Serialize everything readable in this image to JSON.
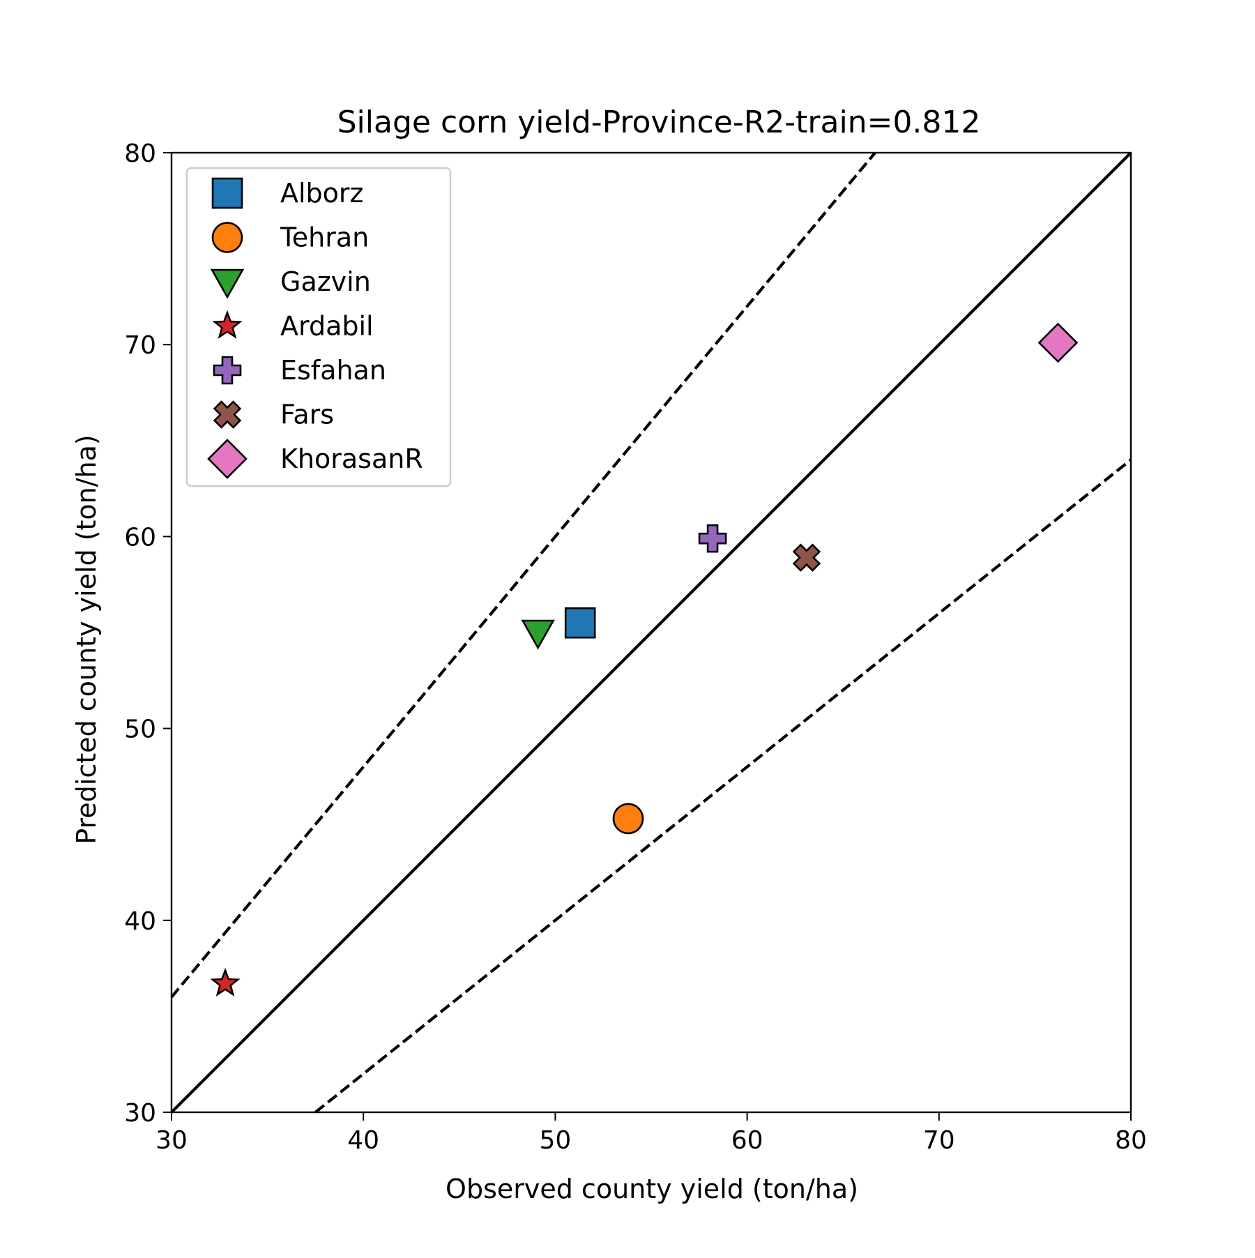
{
  "chart_data": {
    "type": "scatter",
    "title": "Silage corn yield-Province-R2-train=0.812",
    "xlabel": "Observed county yield (ton/ha)",
    "ylabel": "Predicted county yield (ton/ha)",
    "xlim": [
      30,
      80
    ],
    "ylim": [
      30,
      80
    ],
    "xticks": [
      30,
      40,
      50,
      60,
      70,
      80
    ],
    "yticks": [
      30,
      40,
      50,
      60,
      70,
      80
    ],
    "grid": false,
    "legend_position": "top-left",
    "reference_lines": [
      {
        "name": "1:1",
        "style": "solid",
        "points": [
          [
            30,
            30
          ],
          [
            80,
            80
          ]
        ]
      },
      {
        "name": "upper",
        "style": "dashed",
        "points": [
          [
            30,
            36
          ],
          [
            66.67,
            80
          ]
        ]
      },
      {
        "name": "lower",
        "style": "dashed",
        "points": [
          [
            37.5,
            30
          ],
          [
            80,
            64
          ]
        ]
      }
    ],
    "series": [
      {
        "name": "Alborz",
        "marker": "square",
        "color": "#1f77b4",
        "x": 51.3,
        "y": 55.5
      },
      {
        "name": "Tehran",
        "marker": "circle",
        "color": "#ff7f0e",
        "x": 53.8,
        "y": 45.3
      },
      {
        "name": "Gazvin",
        "marker": "triangle-down",
        "color": "#2ca02c",
        "x": 49.1,
        "y": 55.0
      },
      {
        "name": "Ardabil",
        "marker": "star",
        "color": "#d62728",
        "x": 32.8,
        "y": 36.7
      },
      {
        "name": "Esfahan",
        "marker": "plus",
        "color": "#9467bd",
        "x": 58.2,
        "y": 59.9
      },
      {
        "name": "Fars",
        "marker": "x",
        "color": "#8c564b",
        "x": 63.1,
        "y": 58.9
      },
      {
        "name": "KhorasanR",
        "marker": "diamond",
        "color": "#e377c2",
        "x": 76.2,
        "y": 70.1
      }
    ]
  }
}
